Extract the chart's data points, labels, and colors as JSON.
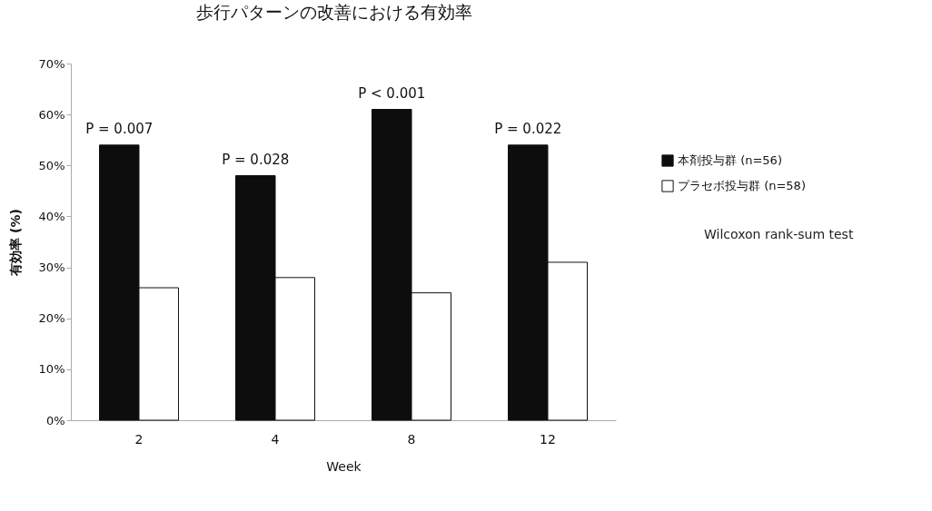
{
  "chart_data": {
    "type": "bar",
    "title": "歩行パターンの改善における有効率",
    "xlabel": "Week",
    "ylabel": "有効率 (%)",
    "categories": [
      "2",
      "4",
      "8",
      "12"
    ],
    "series": [
      {
        "name": "本剤投与群 (n=56)",
        "color": "#0d0d0d",
        "values": [
          54,
          48,
          61,
          54
        ]
      },
      {
        "name": "プラセボ投与群 (n=58)",
        "color": "#ffffff",
        "values": [
          26,
          28,
          25,
          31
        ]
      }
    ],
    "ylim": [
      0,
      70
    ],
    "yticks": [
      {
        "value": 0,
        "label": "0%"
      },
      {
        "value": 10,
        "label": "10%"
      },
      {
        "value": 20,
        "label": "20%"
      },
      {
        "value": 30,
        "label": "30%"
      },
      {
        "value": 40,
        "label": "40%"
      },
      {
        "value": 50,
        "label": "50%"
      },
      {
        "value": 60,
        "label": "60%"
      },
      {
        "value": 70,
        "label": "70%"
      }
    ],
    "grid": false,
    "legend": "right",
    "annotations": [
      {
        "text": "P = 0.007",
        "x": "2",
        "y": 54
      },
      {
        "text": "P = 0.028",
        "x": "4",
        "y": 48
      },
      {
        "text": "P < 0.001",
        "x": "8",
        "y": 61
      },
      {
        "text": "P = 0.022",
        "x": "12",
        "y": 54
      },
      "Wilcoxon rank-sum test"
    ]
  }
}
